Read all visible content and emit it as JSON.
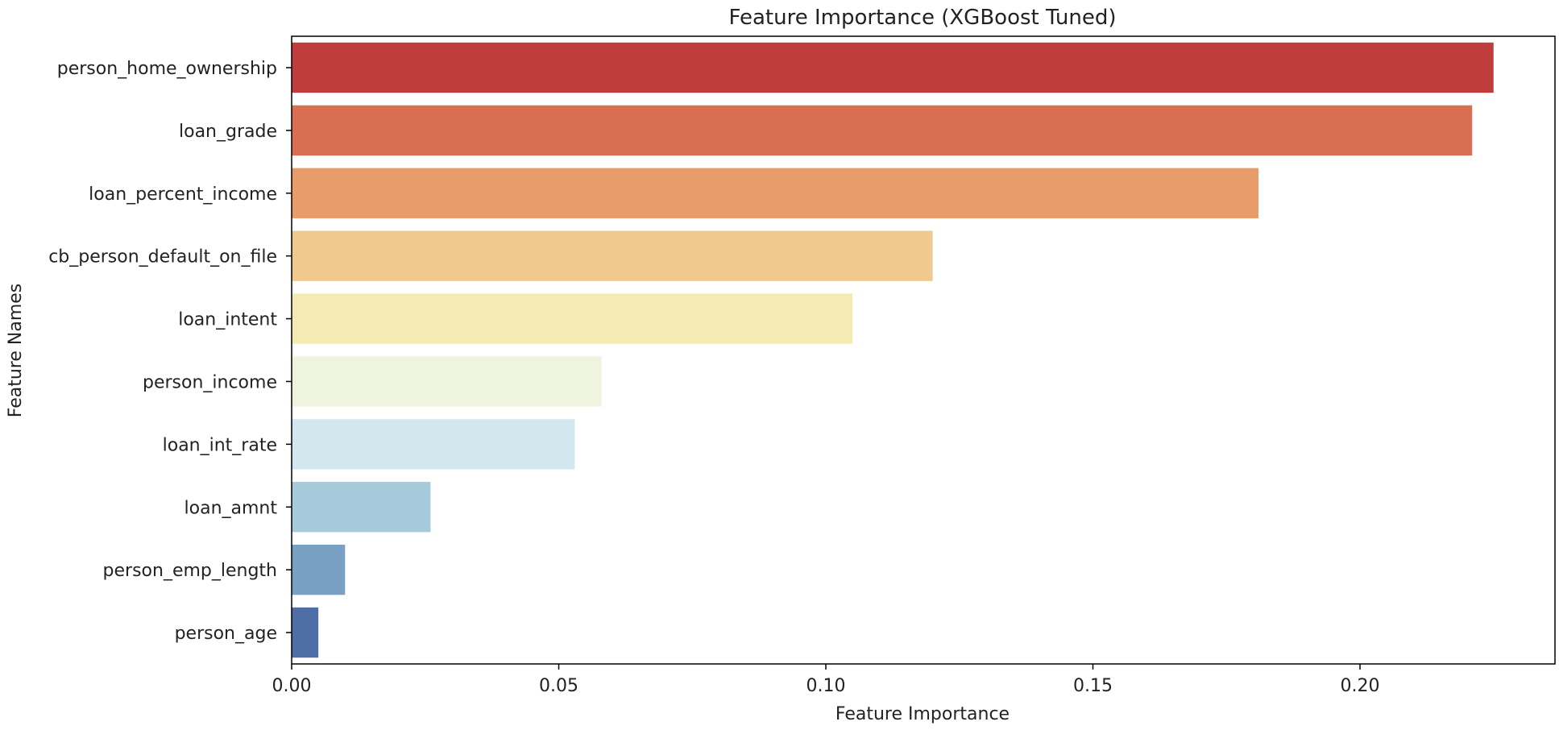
{
  "chart_data": {
    "type": "bar",
    "orientation": "horizontal",
    "title": "Feature Importance (XGBoost Tuned)",
    "xlabel": "Feature Importance",
    "ylabel": "Feature Names",
    "xlim": [
      0,
      0.2365
    ],
    "xticks": [
      0.0,
      0.05,
      0.1,
      0.15,
      0.2
    ],
    "xtick_labels": [
      "0.00",
      "0.05",
      "0.10",
      "0.15",
      "0.20"
    ],
    "grid": false,
    "legend": "none",
    "categories": [
      "person_home_ownership",
      "loan_grade",
      "loan_percent_income",
      "cb_person_default_on_file",
      "loan_intent",
      "person_income",
      "loan_int_rate",
      "loan_amnt",
      "person_emp_length",
      "person_age"
    ],
    "values": [
      0.225,
      0.221,
      0.181,
      0.12,
      0.105,
      0.058,
      0.053,
      0.026,
      0.01,
      0.005
    ],
    "colors": [
      "#c03d3e",
      "#d96e53",
      "#e89c6a",
      "#efc98e",
      "#f4eab3",
      "#eff4df",
      "#d3e8ee",
      "#a6cad9",
      "#77a0c3",
      "#4e6fa6"
    ]
  }
}
